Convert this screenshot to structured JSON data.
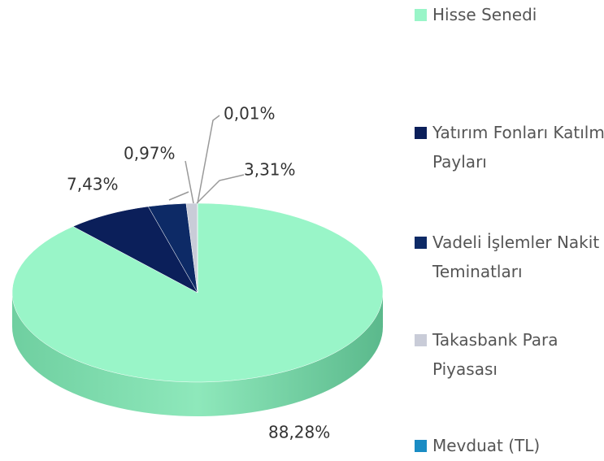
{
  "chart_data": {
    "type": "pie",
    "categories": [
      "Hisse Senedi",
      "Yatırım Fonları Katılma Payları",
      "Vadeli İşlemler Nakit Teminatları",
      "Takasbank Para Piyasası",
      "Mevduat (TL)"
    ],
    "values": [
      88.28,
      7.43,
      3.31,
      0.97,
      0.01
    ],
    "value_labels": [
      "88,28%",
      "7,43%",
      "3,31%",
      "0,97%",
      "0,01%"
    ],
    "colors": [
      "#99f5c8",
      "#0b1f5a",
      "#0d2a66",
      "#c9ccd8",
      "#1a8cc4"
    ],
    "legend": "right"
  }
}
